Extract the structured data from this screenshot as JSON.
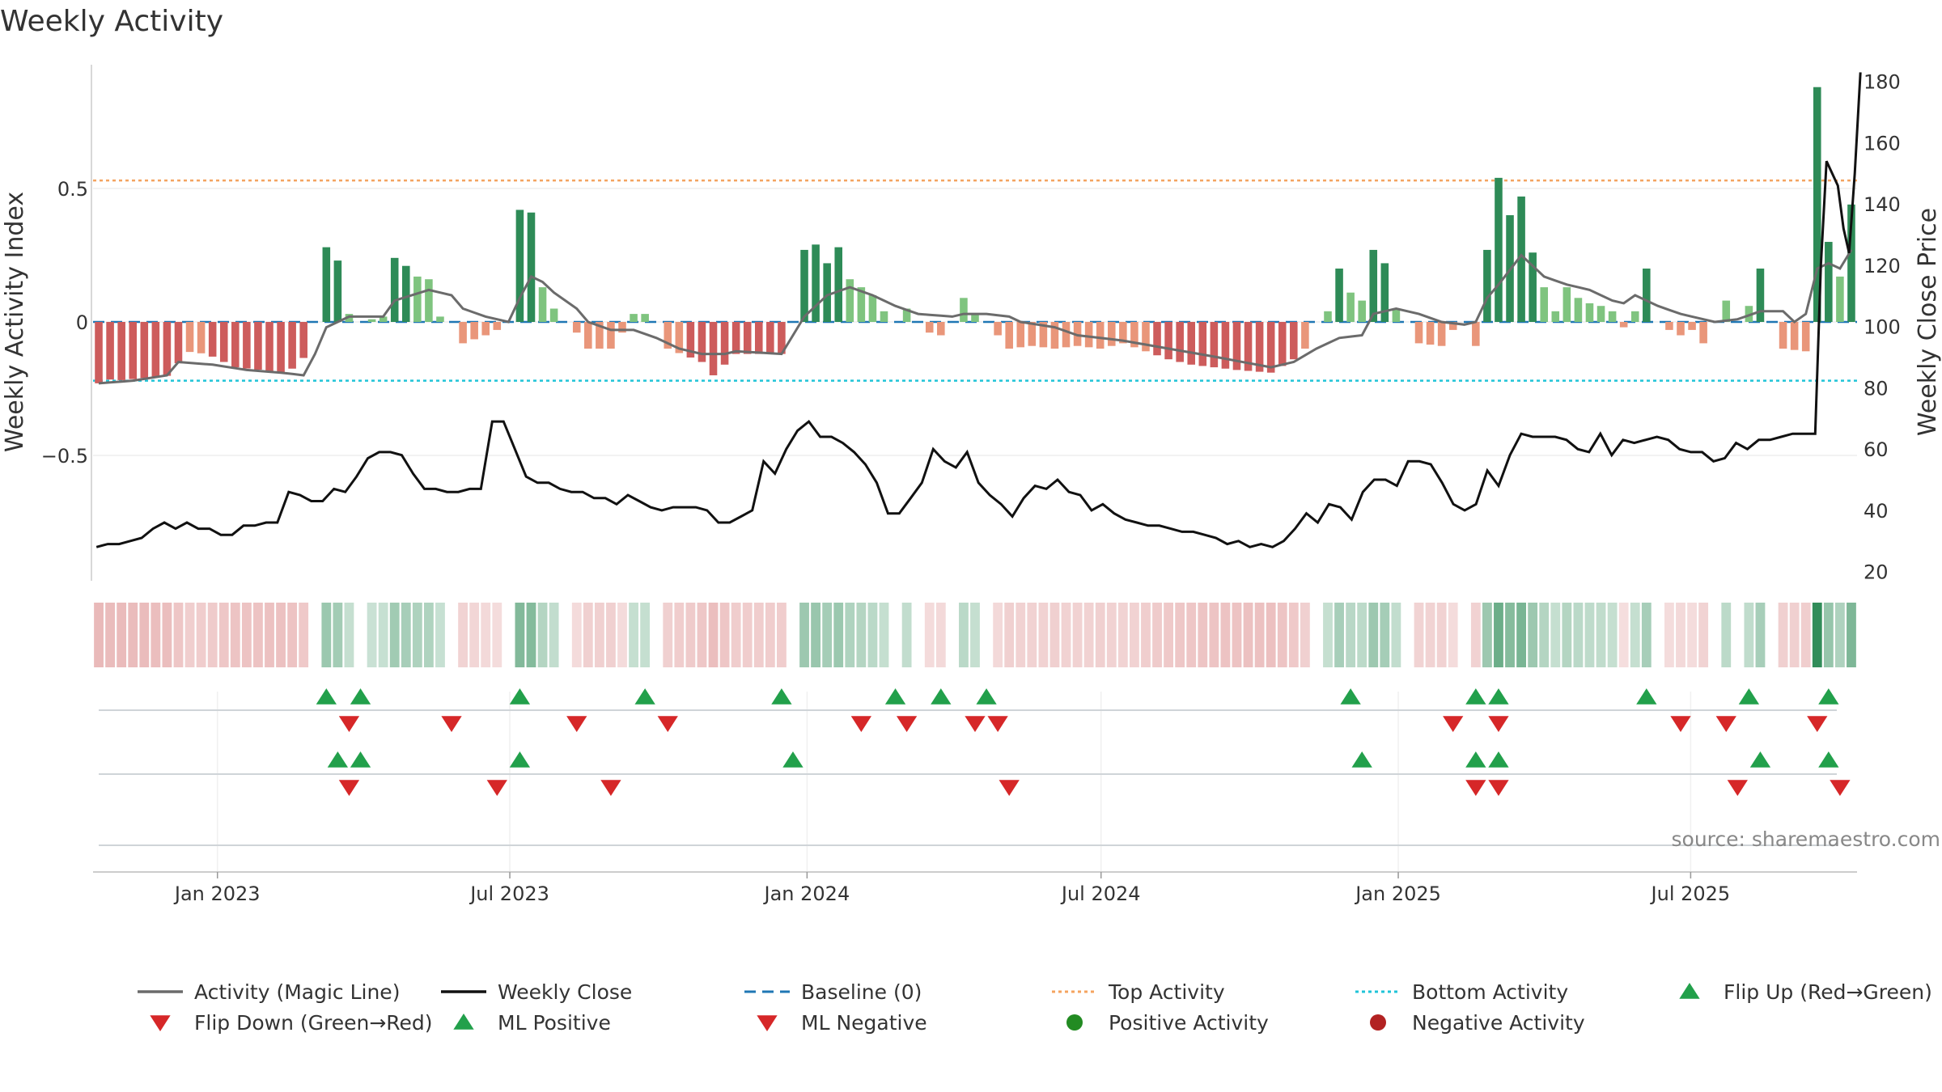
{
  "chart_data": {
    "type": "bar",
    "title": "Weekly Activity",
    "ylabel_left": "Weekly Activity Index",
    "ylabel_right": "Weekly Close Price",
    "source": "source: sharemaestro.com",
    "left_ylim": [
      -0.97,
      0.97
    ],
    "left_ticks": [
      0.5,
      0,
      -0.5
    ],
    "left_tick_labels": [
      "0.5",
      "0",
      "−0.5"
    ],
    "right_ylim": [
      17,
      186
    ],
    "right_ticks": [
      20,
      40,
      60,
      80,
      100,
      120,
      140,
      160,
      180
    ],
    "right_tick_labels": [
      "20",
      "40",
      "60",
      "80",
      "100",
      "120",
      "140",
      "160",
      "180"
    ],
    "x_start": "2022-10-16",
    "x_end": "2025-10-12",
    "x_ticks": [
      {
        "label": "Jan 2023",
        "date": "2023-01-01"
      },
      {
        "label": "Jul 2023",
        "date": "2023-07-01"
      },
      {
        "label": "Jan 2024",
        "date": "2024-01-01"
      },
      {
        "label": "Jul 2024",
        "date": "2024-07-01"
      },
      {
        "label": "Jan 2025",
        "date": "2025-01-01"
      },
      {
        "label": "Jul 2025",
        "date": "2025-07-01"
      }
    ],
    "top_activity": 0.53,
    "bottom_activity": -0.22,
    "colors": {
      "strong_green": "#2e8b57",
      "light_green": "#7fc47f",
      "strong_red": "#cd5c5c",
      "light_red": "#e9967a",
      "magic_line": "#6b6b6b",
      "close_line": "#111111",
      "baseline": "#1f77b4",
      "top": "#f4a460",
      "bottom": "#20c4d8",
      "up_marker": "#22a04b",
      "down_marker": "#d62728",
      "pos_dot": "#228b22",
      "neg_dot": "#b22222",
      "axis": "#cccccc",
      "grid": "#eeeeee"
    },
    "activity_keys": [
      [
        0.0,
        -0.23
      ],
      [
        0.3,
        -0.21
      ],
      [
        1.5,
        -0.22
      ],
      [
        6.5,
        -0.2
      ],
      [
        7.5,
        -0.11
      ],
      [
        9.5,
        -0.12
      ],
      [
        12,
        -0.17
      ],
      [
        16.5,
        -0.19
      ],
      [
        17.5,
        -0.16
      ],
      [
        18.5,
        -0.11
      ],
      [
        19,
        0.0
      ],
      [
        20,
        0.28
      ],
      [
        21,
        0.23
      ],
      [
        22,
        0.03
      ],
      [
        23,
        0.0
      ],
      [
        25,
        0.02
      ],
      [
        26,
        0.24
      ],
      [
        27,
        0.21
      ],
      [
        28,
        0.17
      ],
      [
        29,
        0.16
      ],
      [
        30,
        0.02
      ],
      [
        31,
        0.0
      ],
      [
        32,
        -0.08
      ],
      [
        34,
        -0.05
      ],
      [
        35,
        -0.03
      ],
      [
        36,
        0.0
      ],
      [
        37,
        0.42
      ],
      [
        38,
        0.41
      ],
      [
        39,
        0.13
      ],
      [
        40,
        0.05
      ],
      [
        41,
        0.0
      ],
      [
        42,
        -0.04
      ],
      [
        43,
        -0.1
      ],
      [
        45,
        -0.1
      ],
      [
        46,
        -0.04
      ],
      [
        47,
        0.03
      ],
      [
        48,
        0.03
      ],
      [
        49,
        0.0
      ],
      [
        50,
        -0.1
      ],
      [
        53,
        -0.15
      ],
      [
        54,
        -0.2
      ],
      [
        56,
        -0.12
      ],
      [
        60,
        -0.12
      ],
      [
        61,
        0.0
      ],
      [
        62,
        0.27
      ],
      [
        63,
        0.29
      ],
      [
        64,
        0.22
      ],
      [
        65,
        0.28
      ],
      [
        66,
        0.16
      ],
      [
        67,
        0.13
      ],
      [
        68,
        0.1
      ],
      [
        69,
        0.04
      ],
      [
        70,
        0.0
      ],
      [
        71,
        0.05
      ],
      [
        72,
        0.0
      ],
      [
        73,
        -0.04
      ],
      [
        74,
        -0.05
      ],
      [
        75,
        0.0
      ],
      [
        76,
        0.09
      ],
      [
        77,
        0.03
      ],
      [
        78,
        0.0
      ],
      [
        79,
        -0.05
      ],
      [
        80,
        -0.1
      ],
      [
        82,
        -0.09
      ],
      [
        84,
        -0.1
      ],
      [
        86,
        -0.09
      ],
      [
        88,
        -0.1
      ],
      [
        90,
        -0.08
      ],
      [
        94,
        -0.14
      ],
      [
        96,
        -0.16
      ],
      [
        100,
        -0.18
      ],
      [
        103,
        -0.19
      ],
      [
        105,
        -0.14
      ],
      [
        106,
        -0.1
      ],
      [
        107,
        0.0
      ],
      [
        108,
        0.04
      ],
      [
        109,
        0.2
      ],
      [
        110,
        0.11
      ],
      [
        111,
        0.08
      ],
      [
        112,
        0.27
      ],
      [
        113,
        0.22
      ],
      [
        114,
        0.05
      ],
      [
        115,
        0.0
      ],
      [
        116,
        -0.08
      ],
      [
        118,
        -0.09
      ],
      [
        119,
        -0.03
      ],
      [
        120,
        0.0
      ],
      [
        121,
        -0.09
      ],
      [
        122,
        0.27
      ],
      [
        123,
        0.54
      ],
      [
        124,
        0.4
      ],
      [
        125,
        0.47
      ],
      [
        126,
        0.26
      ],
      [
        127,
        0.13
      ],
      [
        128,
        0.04
      ],
      [
        129,
        0.13
      ],
      [
        130,
        0.09
      ],
      [
        131,
        0.07
      ],
      [
        132,
        0.06
      ],
      [
        133,
        0.04
      ],
      [
        134,
        -0.02
      ],
      [
        135,
        0.04
      ],
      [
        136,
        0.2
      ],
      [
        137,
        0.0
      ],
      [
        138,
        -0.03
      ],
      [
        139,
        -0.05
      ],
      [
        140,
        -0.03
      ],
      [
        141,
        -0.08
      ],
      [
        142,
        0.0
      ],
      [
        143,
        0.08
      ],
      [
        144,
        0.0
      ],
      [
        145,
        0.06
      ],
      [
        146,
        0.2
      ],
      [
        147,
        0.0
      ],
      [
        148,
        -0.1
      ],
      [
        150,
        -0.11
      ],
      [
        151,
        0.88
      ],
      [
        152,
        0.3
      ],
      [
        153,
        0.17
      ],
      [
        154,
        0.44
      ]
    ],
    "magic_line_keys": [
      [
        0,
        -0.23
      ],
      [
        3,
        -0.22
      ],
      [
        6,
        -0.2
      ],
      [
        7,
        -0.15
      ],
      [
        10,
        -0.16
      ],
      [
        13,
        -0.18
      ],
      [
        16,
        -0.19
      ],
      [
        18,
        -0.2
      ],
      [
        19,
        -0.12
      ],
      [
        20,
        -0.02
      ],
      [
        22,
        0.02
      ],
      [
        25,
        0.02
      ],
      [
        26,
        0.08
      ],
      [
        29,
        0.12
      ],
      [
        31,
        0.1
      ],
      [
        32,
        0.05
      ],
      [
        34,
        0.02
      ],
      [
        36,
        0.0
      ],
      [
        37,
        0.09
      ],
      [
        38,
        0.17
      ],
      [
        39,
        0.15
      ],
      [
        40,
        0.11
      ],
      [
        42,
        0.05
      ],
      [
        43,
        0.0
      ],
      [
        45,
        -0.03
      ],
      [
        47,
        -0.03
      ],
      [
        49,
        -0.06
      ],
      [
        51,
        -0.1
      ],
      [
        53,
        -0.12
      ],
      [
        55,
        -0.12
      ],
      [
        56,
        -0.11
      ],
      [
        60,
        -0.12
      ],
      [
        62,
        0.02
      ],
      [
        64,
        0.1
      ],
      [
        66,
        0.13
      ],
      [
        68,
        0.1
      ],
      [
        70,
        0.06
      ],
      [
        72,
        0.03
      ],
      [
        75,
        0.02
      ],
      [
        76,
        0.03
      ],
      [
        78,
        0.03
      ],
      [
        80,
        0.02
      ],
      [
        81,
        0.0
      ],
      [
        84,
        -0.02
      ],
      [
        86,
        -0.05
      ],
      [
        90,
        -0.07
      ],
      [
        94,
        -0.1
      ],
      [
        98,
        -0.13
      ],
      [
        103,
        -0.17
      ],
      [
        105,
        -0.15
      ],
      [
        107,
        -0.1
      ],
      [
        109,
        -0.06
      ],
      [
        111,
        -0.05
      ],
      [
        112,
        0.03
      ],
      [
        114,
        0.05
      ],
      [
        116,
        0.03
      ],
      [
        118,
        0.0
      ],
      [
        120,
        -0.01
      ],
      [
        121,
        0.0
      ],
      [
        122,
        0.09
      ],
      [
        123,
        0.14
      ],
      [
        125,
        0.25
      ],
      [
        126,
        0.21
      ],
      [
        127,
        0.17
      ],
      [
        129,
        0.14
      ],
      [
        131,
        0.12
      ],
      [
        133,
        0.08
      ],
      [
        134,
        0.07
      ],
      [
        135,
        0.1
      ],
      [
        137,
        0.06
      ],
      [
        139,
        0.03
      ],
      [
        142,
        0.0
      ],
      [
        144,
        0.01
      ],
      [
        146,
        0.04
      ],
      [
        148,
        0.04
      ],
      [
        149,
        0.0
      ],
      [
        150,
        0.03
      ],
      [
        151,
        0.2
      ],
      [
        152,
        0.22
      ],
      [
        153,
        0.2
      ],
      [
        154,
        0.27
      ]
    ],
    "close_keys": [
      [
        0,
        28
      ],
      [
        1,
        29
      ],
      [
        2,
        29
      ],
      [
        3,
        30
      ],
      [
        4,
        31
      ],
      [
        5,
        34
      ],
      [
        6,
        36
      ],
      [
        7,
        34
      ],
      [
        8,
        36
      ],
      [
        9,
        34
      ],
      [
        10,
        34
      ],
      [
        11,
        32
      ],
      [
        12,
        32
      ],
      [
        13,
        35
      ],
      [
        14,
        35
      ],
      [
        15,
        36
      ],
      [
        16,
        36
      ],
      [
        17,
        46
      ],
      [
        18,
        45
      ],
      [
        19,
        43
      ],
      [
        20,
        43
      ],
      [
        21,
        47
      ],
      [
        22,
        46
      ],
      [
        23,
        51
      ],
      [
        24,
        57
      ],
      [
        25,
        59
      ],
      [
        26,
        59
      ],
      [
        27,
        58
      ],
      [
        28,
        52
      ],
      [
        29,
        47
      ],
      [
        30,
        47
      ],
      [
        31,
        46
      ],
      [
        32,
        46
      ],
      [
        33,
        47
      ],
      [
        34,
        47
      ],
      [
        35,
        69
      ],
      [
        36,
        69
      ],
      [
        37,
        60
      ],
      [
        38,
        51
      ],
      [
        39,
        49
      ],
      [
        40,
        49
      ],
      [
        41,
        47
      ],
      [
        42,
        46
      ],
      [
        43,
        46
      ],
      [
        44,
        44
      ],
      [
        45,
        44
      ],
      [
        46,
        42
      ],
      [
        47,
        45
      ],
      [
        48,
        43
      ],
      [
        49,
        41
      ],
      [
        50,
        40
      ],
      [
        51,
        41
      ],
      [
        52,
        41
      ],
      [
        53,
        41
      ],
      [
        54,
        40
      ],
      [
        55,
        36
      ],
      [
        56,
        36
      ],
      [
        57,
        38
      ],
      [
        58,
        40
      ],
      [
        59,
        56
      ],
      [
        60,
        52
      ],
      [
        61,
        60
      ],
      [
        62,
        66
      ],
      [
        63,
        69
      ],
      [
        64,
        64
      ],
      [
        65,
        64
      ],
      [
        66,
        62
      ],
      [
        67,
        59
      ],
      [
        68,
        55
      ],
      [
        69,
        49
      ],
      [
        70,
        39
      ],
      [
        71,
        39
      ],
      [
        72,
        44
      ],
      [
        73,
        49
      ],
      [
        74,
        60
      ],
      [
        75,
        56
      ],
      [
        76,
        54
      ],
      [
        77,
        59
      ],
      [
        78,
        49
      ],
      [
        79,
        45
      ],
      [
        80,
        42
      ],
      [
        81,
        38
      ],
      [
        82,
        44
      ],
      [
        83,
        48
      ],
      [
        84,
        47
      ],
      [
        85,
        50
      ],
      [
        86,
        46
      ],
      [
        87,
        45
      ],
      [
        88,
        40
      ],
      [
        89,
        42
      ],
      [
        90,
        39
      ],
      [
        91,
        37
      ],
      [
        92,
        36
      ],
      [
        93,
        35
      ],
      [
        94,
        35
      ],
      [
        95,
        34
      ],
      [
        96,
        33
      ],
      [
        97,
        33
      ],
      [
        98,
        32
      ],
      [
        99,
        31
      ],
      [
        100,
        29
      ],
      [
        101,
        30
      ],
      [
        102,
        28
      ],
      [
        103,
        29
      ],
      [
        104,
        28
      ],
      [
        105,
        30
      ],
      [
        106,
        34
      ],
      [
        107,
        39
      ],
      [
        108,
        36
      ],
      [
        109,
        42
      ],
      [
        110,
        41
      ],
      [
        111,
        37
      ],
      [
        112,
        46
      ],
      [
        113,
        50
      ],
      [
        114,
        50
      ],
      [
        115,
        48
      ],
      [
        116,
        56
      ],
      [
        117,
        56
      ],
      [
        118,
        55
      ],
      [
        119,
        49
      ],
      [
        120,
        42
      ],
      [
        121,
        40
      ],
      [
        122,
        42
      ],
      [
        123,
        53
      ],
      [
        124,
        48
      ],
      [
        125,
        58
      ],
      [
        126,
        65
      ],
      [
        127,
        64
      ],
      [
        128,
        64
      ],
      [
        129,
        64
      ],
      [
        130,
        63
      ],
      [
        131,
        60
      ],
      [
        132,
        59
      ],
      [
        133,
        65
      ],
      [
        134,
        58
      ],
      [
        135,
        63
      ],
      [
        136,
        62
      ],
      [
        137,
        63
      ],
      [
        138,
        64
      ],
      [
        139,
        63
      ],
      [
        140,
        60
      ],
      [
        141,
        59
      ],
      [
        142,
        59
      ],
      [
        143,
        56
      ],
      [
        144,
        57
      ],
      [
        145,
        62
      ],
      [
        146,
        60
      ],
      [
        147,
        63
      ],
      [
        148,
        63
      ],
      [
        149,
        64
      ],
      [
        150,
        65
      ],
      [
        151,
        65
      ],
      [
        152,
        65
      ],
      [
        152.5,
        120
      ],
      [
        153,
        154
      ],
      [
        154,
        146
      ],
      [
        154.5,
        132
      ],
      [
        155,
        124
      ],
      [
        155.5,
        150
      ],
      [
        156,
        183
      ]
    ],
    "flip_up_weeks": [
      20,
      23,
      37,
      48,
      60,
      70,
      74,
      78,
      110,
      121,
      123,
      136,
      145,
      152
    ],
    "flip_down_weeks": [
      22,
      31,
      42,
      50,
      67,
      71,
      77,
      79,
      119,
      123,
      139,
      143,
      151
    ],
    "ml_positive_weeks": [
      21,
      23,
      37,
      61,
      111,
      121,
      123,
      146,
      152
    ],
    "ml_negative_weeks": [
      22,
      35,
      45,
      80,
      121,
      123,
      144,
      153
    ],
    "legend": [
      {
        "label": "Activity (Magic Line)",
        "kind": "line",
        "color": "#6b6b6b"
      },
      {
        "label": "Weekly Close",
        "kind": "line",
        "color": "#111111"
      },
      {
        "label": "Baseline (0)",
        "kind": "dash",
        "color": "#1f77b4"
      },
      {
        "label": "Top Activity",
        "kind": "dot",
        "color": "#f4a460"
      },
      {
        "label": "Bottom Activity",
        "kind": "dot",
        "color": "#20c4d8"
      },
      {
        "label": "Flip Up (Red→Green)",
        "kind": "up",
        "color": "#22a04b"
      },
      {
        "label": "Flip Down (Green→Red)",
        "kind": "down",
        "color": "#d62728"
      },
      {
        "label": "ML Positive",
        "kind": "up",
        "color": "#22a04b"
      },
      {
        "label": "ML Negative",
        "kind": "down",
        "color": "#d62728"
      },
      {
        "label": "Positive Activity",
        "kind": "circle",
        "color": "#228b22"
      },
      {
        "label": "Negative Activity",
        "kind": "circle",
        "color": "#b22222"
      }
    ]
  }
}
